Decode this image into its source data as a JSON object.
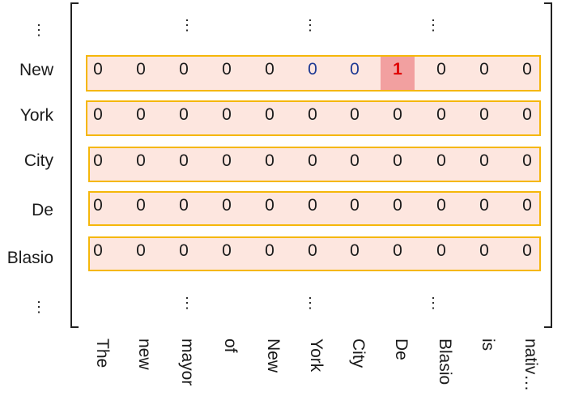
{
  "row_labels": [
    "New",
    "York",
    "City",
    "De",
    "Blasio"
  ],
  "ellipsis": "⋮",
  "column_labels": [
    "The",
    "new",
    "mayor",
    "of",
    "New",
    "York",
    "City",
    "De",
    "Blasio",
    "is",
    "nativ…"
  ],
  "matrix": [
    [
      "0",
      "0",
      "0",
      "0",
      "0",
      "0",
      "0",
      "1",
      "0",
      "0",
      "0"
    ],
    [
      "0",
      "0",
      "0",
      "0",
      "0",
      "0",
      "0",
      "0",
      "0",
      "0",
      "0"
    ],
    [
      "0",
      "0",
      "0",
      "0",
      "0",
      "0",
      "0",
      "0",
      "0",
      "0",
      "0"
    ],
    [
      "0",
      "0",
      "0",
      "0",
      "0",
      "0",
      "0",
      "0",
      "0",
      "0",
      "0"
    ],
    [
      "0",
      "0",
      "0",
      "0",
      "0",
      "0",
      "0",
      "0",
      "0",
      "0",
      "0"
    ]
  ],
  "highlight": {
    "row": 0,
    "col": 7
  },
  "blue_cells": [
    {
      "row": 0,
      "col": 5
    },
    {
      "row": 0,
      "col": 6
    }
  ],
  "colors": {
    "row_fill": "#fde6df",
    "row_border": "#f5b70a",
    "highlight_fill": "#f2a0a0",
    "highlight_text": "#e00000",
    "blue_text": "#1f3a93"
  }
}
